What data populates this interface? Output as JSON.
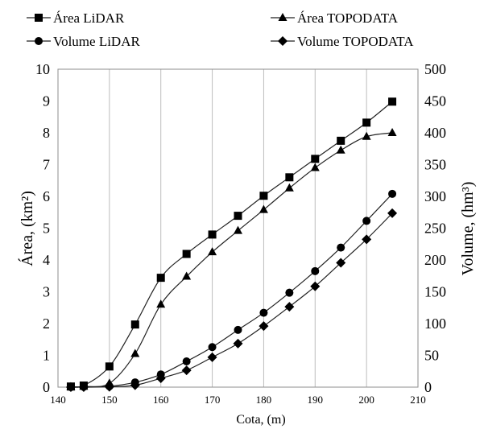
{
  "chart_data": {
    "type": "line",
    "xlabel": "Cota, (m)",
    "ylabel_left": "Área, (km²)",
    "ylabel_right": "Volume, (hm³)",
    "xlim": [
      140,
      210
    ],
    "x_ticks": [
      "140",
      "150",
      "160",
      "170",
      "180",
      "190",
      "200",
      "210"
    ],
    "ylim_left": [
      0,
      10
    ],
    "y_left_ticks": [
      "0",
      "1",
      "2",
      "3",
      "4",
      "5",
      "6",
      "7",
      "8",
      "9",
      "10"
    ],
    "ylim_right": [
      0,
      500
    ],
    "y_right_ticks": [
      "0",
      "50",
      "100",
      "150",
      "200",
      "250",
      "300",
      "350",
      "400",
      "450",
      "500"
    ],
    "grid": "vertical",
    "legend_position": "top",
    "series": [
      {
        "name": "Área LiDAR",
        "axis": "left",
        "marker": "square",
        "color": "#000000",
        "x": [
          142.5,
          145,
          150,
          155,
          160,
          165,
          170,
          175,
          180,
          185,
          190,
          195,
          200,
          205
        ],
        "y": [
          0.02,
          0.05,
          0.65,
          1.97,
          3.44,
          4.19,
          4.8,
          5.39,
          6.02,
          6.6,
          7.18,
          7.75,
          8.32,
          8.98
        ]
      },
      {
        "name": "Área TOPODATA",
        "axis": "left",
        "marker": "triangle",
        "color": "#000000",
        "x": [
          142.5,
          145,
          150,
          155,
          160,
          165,
          170,
          175,
          180,
          185,
          190,
          195,
          200,
          205
        ],
        "y": [
          0.01,
          0.02,
          0.12,
          1.05,
          2.6,
          3.48,
          4.25,
          4.92,
          5.58,
          6.26,
          6.9,
          7.45,
          7.88,
          8.0
        ]
      },
      {
        "name": "Volume LiDAR",
        "axis": "right",
        "marker": "circle",
        "color": "#000000",
        "x": [
          142.5,
          145,
          150,
          155,
          160,
          165,
          170,
          175,
          180,
          185,
          190,
          195,
          200,
          205
        ],
        "y": [
          0,
          0.5,
          1.5,
          7.5,
          20,
          40.5,
          63,
          90,
          117,
          148.5,
          182.5,
          219.5,
          261.5,
          304
        ]
      },
      {
        "name": "Volume TOPODATA",
        "axis": "right",
        "marker": "diamond",
        "color": "#000000",
        "x": [
          142.5,
          145,
          150,
          155,
          160,
          165,
          170,
          175,
          180,
          185,
          190,
          195,
          200,
          205
        ],
        "y": [
          0,
          0,
          0.5,
          3,
          14,
          26.5,
          47,
          68.5,
          96,
          126.5,
          158.5,
          195.5,
          232.5,
          273.5
        ]
      }
    ]
  }
}
